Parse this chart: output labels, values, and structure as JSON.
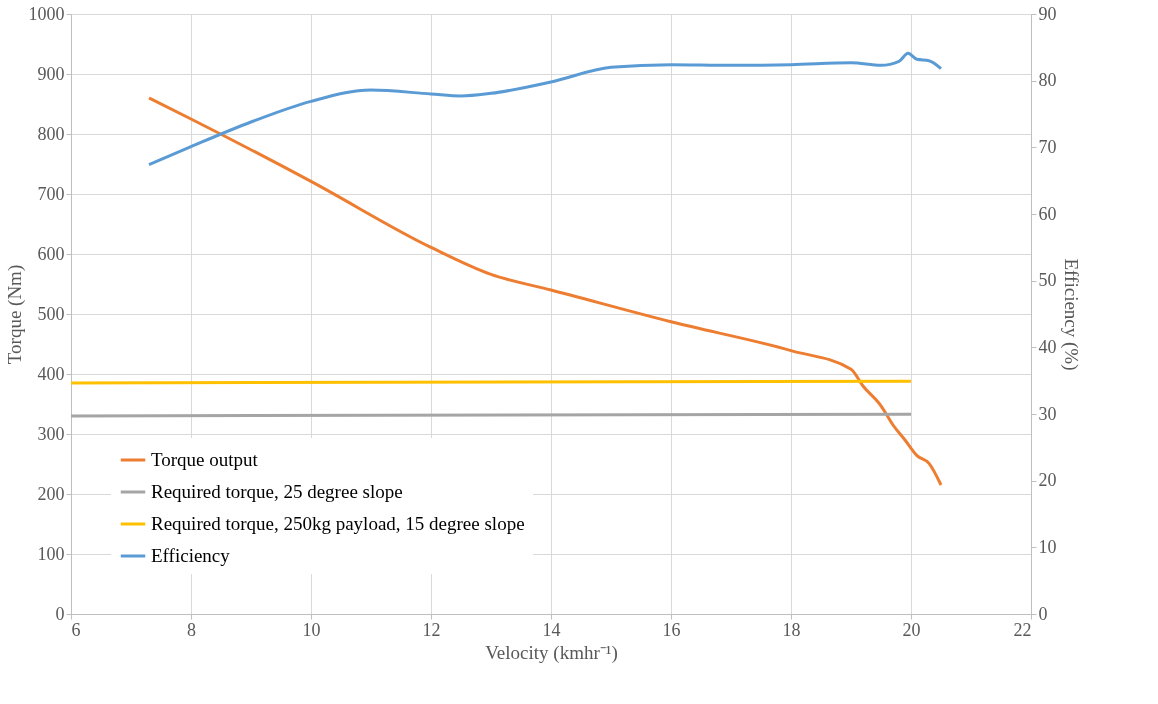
{
  "chart_data": {
    "type": "line",
    "xlabel": "Velocity (kmhr⁻¹)",
    "ylabel": "Torque (Nm)",
    "y2label": "Efficiency (%)",
    "xlim": [
      6,
      22
    ],
    "xticks": [
      6,
      8,
      10,
      12,
      14,
      16,
      18,
      20,
      22
    ],
    "ylim": [
      0,
      1000
    ],
    "yticks": [
      0,
      100,
      200,
      300,
      400,
      500,
      600,
      700,
      800,
      900,
      1000
    ],
    "y2lim": [
      0,
      90
    ],
    "y2ticks": [
      0,
      10,
      20,
      30,
      40,
      50,
      60,
      70,
      80,
      90
    ],
    "grid": true,
    "legend": "bottom left",
    "series": [
      {
        "name": "Torque output",
        "color": "#ed7d31",
        "x": [
          7.3,
          8,
          10,
          12,
          13,
          14,
          16,
          18,
          19,
          19.2,
          19.5,
          19.7,
          19.9,
          20.1,
          20.3,
          20.5
        ],
        "values": [
          860,
          825,
          721,
          611,
          566,
          540,
          487,
          439,
          408,
          380,
          347,
          315,
          290,
          264,
          251,
          215
        ]
      },
      {
        "name": "Required torque, 25 degree slope",
        "color": "#a5a5a5",
        "x": [
          6,
          20
        ],
        "values": [
          330,
          333
        ]
      },
      {
        "name": "Required torque, 250kg payload, 15 degree slope",
        "color": "#ffc000",
        "x": [
          6,
          20
        ],
        "values": [
          385,
          388
        ]
      },
      {
        "name": "Efficiency",
        "color": "#5b9bd5",
        "axis": "y2",
        "x": [
          7.3,
          8,
          9,
          10,
          11,
          12,
          12.5,
          13,
          14,
          15,
          16,
          17,
          18,
          19,
          19.5,
          19.8,
          19.95,
          20.1,
          20.3,
          20.5
        ],
        "values": [
          67.4,
          70.1,
          73.8,
          76.9,
          78.6,
          78,
          77.7,
          78.1,
          79.8,
          82,
          82.4,
          82.3,
          82.4,
          82.7,
          82.3,
          82.9,
          84.1,
          83.2,
          83,
          81.8
        ]
      }
    ]
  }
}
